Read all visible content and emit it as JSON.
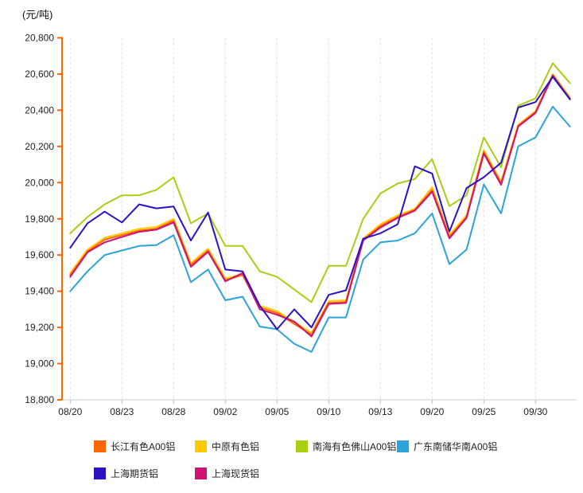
{
  "chart_data": {
    "type": "line",
    "title": "(元/吨)",
    "legend_position": "bottom",
    "grid": "vertical-dashed",
    "axis_colors": {
      "y_axis": "#FF6600",
      "x_axis": "#CCCCCC",
      "gridline": "#DFDFDF",
      "tick_text": "#222222"
    },
    "ylim": [
      18800,
      20800
    ],
    "y_tick_step": 200,
    "y_tick_labels": [
      "20,800",
      "20,600",
      "20,400",
      "20,200",
      "20,000",
      "19,800",
      "19,600",
      "19,400",
      "19,200",
      "19,000",
      "18,800"
    ],
    "x_tick_labels": [
      "08/20",
      "08/23",
      "08/28",
      "09/02",
      "09/05",
      "09/10",
      "09/13",
      "09/20",
      "09/25",
      "09/30"
    ],
    "x_tick_indices": [
      0,
      3,
      6,
      9,
      12,
      15,
      18,
      21,
      24,
      27
    ],
    "n_points": 30,
    "series": [
      {
        "name": "长江有色A00铝",
        "slug": "changjiang-a00",
        "color": "#FF6600",
        "values": [
          19490,
          19620,
          19685,
          19710,
          19735,
          19745,
          19790,
          19545,
          19625,
          19460,
          19490,
          19310,
          19280,
          19220,
          19160,
          19335,
          19340,
          19685,
          19760,
          19810,
          19850,
          19960,
          19700,
          19810,
          20170,
          19995,
          20315,
          20390,
          20595,
          20465
        ]
      },
      {
        "name": "中原有色铝",
        "slug": "zhongyuan",
        "color": "#FFC900",
        "values": [
          19500,
          19630,
          19695,
          19720,
          19745,
          19755,
          19800,
          19555,
          19635,
          19470,
          19495,
          19320,
          19290,
          19230,
          19170,
          19345,
          19350,
          19690,
          19770,
          19820,
          19855,
          19975,
          19710,
          19820,
          20180,
          20005,
          20320,
          20395,
          20600,
          20470
        ]
      },
      {
        "name": "南海有色佛山A00铝",
        "slug": "nanhai-foshan-a00",
        "color": "#A9CE13",
        "values": [
          19720,
          19810,
          19880,
          19930,
          19930,
          19960,
          20030,
          19775,
          19830,
          19650,
          19650,
          19510,
          19480,
          19410,
          19340,
          19540,
          19540,
          19800,
          19940,
          19995,
          20020,
          20130,
          19870,
          19930,
          20250,
          20085,
          20425,
          20465,
          20660,
          20550
        ]
      },
      {
        "name": "广东南储华南A00铝",
        "slug": "guangdong-nanchu-a00",
        "color": "#2BA3DB",
        "values": [
          19400,
          19510,
          19600,
          19625,
          19650,
          19655,
          19710,
          19450,
          19520,
          19350,
          19370,
          19205,
          19190,
          19110,
          19065,
          19255,
          19255,
          19575,
          19670,
          19680,
          19720,
          19830,
          19550,
          19630,
          19990,
          19830,
          20200,
          20250,
          20420,
          20310
        ]
      },
      {
        "name": "上海期货铝",
        "slug": "shanghai-futures",
        "color": "#2D12C4",
        "values": [
          19640,
          19775,
          19840,
          19780,
          19880,
          19858,
          19868,
          19680,
          19835,
          19520,
          19510,
          19320,
          19190,
          19300,
          19200,
          19380,
          19405,
          19690,
          19720,
          19770,
          20090,
          20050,
          19730,
          19970,
          20030,
          20110,
          20415,
          20445,
          20585,
          20460
        ]
      },
      {
        "name": "上海现货铝",
        "slug": "shanghai-spot",
        "color": "#CE1373",
        "values": [
          19480,
          19615,
          19670,
          19700,
          19728,
          19740,
          19780,
          19535,
          19618,
          19455,
          19500,
          19300,
          19270,
          19232,
          19150,
          19330,
          19335,
          19680,
          19752,
          19805,
          19845,
          19950,
          19692,
          19805,
          20160,
          19988,
          20310,
          20385,
          20590,
          20462
        ]
      }
    ]
  }
}
